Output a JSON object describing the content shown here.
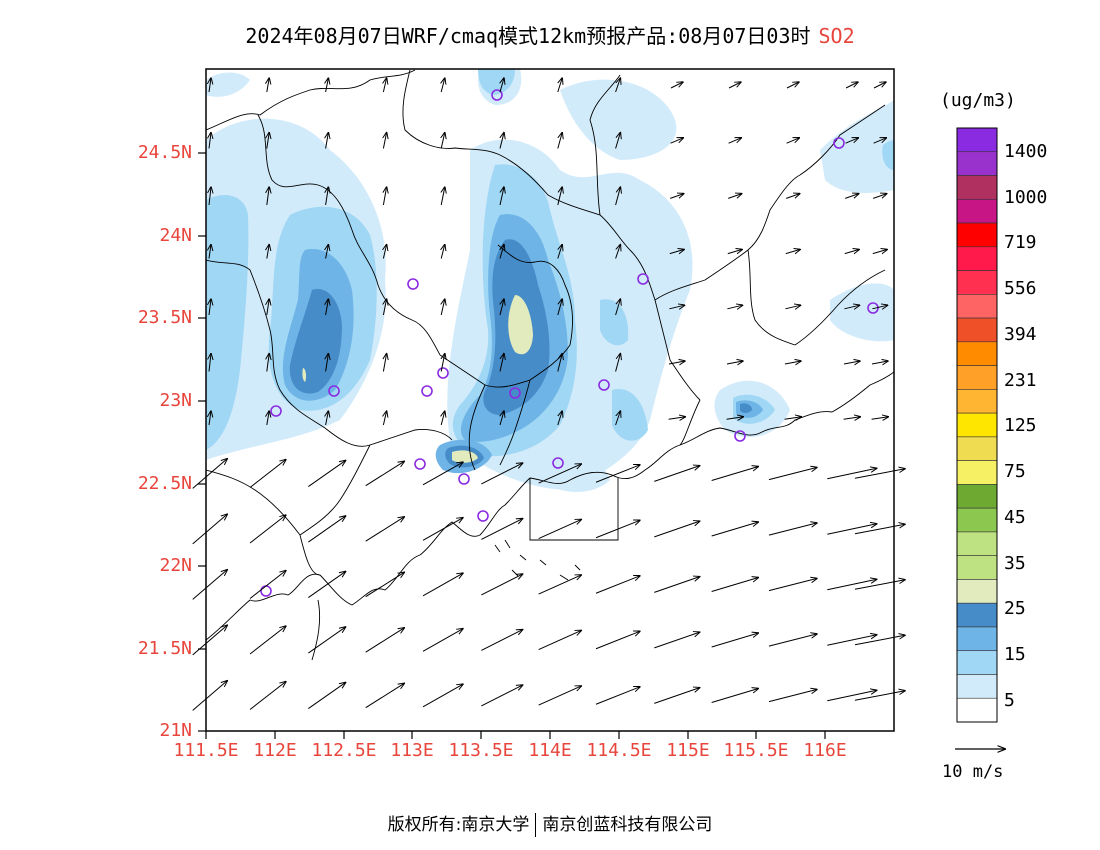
{
  "title": {
    "main": "2024年08月07日WRF/cmaq模式12km预报产品:08月07日03时",
    "pollutant": "SO2"
  },
  "axes": {
    "lat_labels": [
      "24.5N",
      "24N",
      "23.5N",
      "23N",
      "22.5N",
      "22N",
      "21.5N",
      "21N"
    ],
    "lon_labels": [
      "111.5E",
      "112E",
      "112.5E",
      "113E",
      "113.5E",
      "114E",
      "114.5E",
      "115E",
      "115.5E",
      "116E"
    ],
    "lat_range": [
      21.0,
      25.0
    ],
    "lon_range": [
      111.5,
      116.5
    ]
  },
  "colorbar": {
    "unit": "(ug/m3)",
    "labels": [
      "1400",
      "1000",
      "719",
      "556",
      "394",
      "231",
      "125",
      "75",
      "45",
      "35",
      "25",
      "15",
      "5"
    ],
    "colors": [
      "#8a2be2",
      "#9932cc",
      "#b03060",
      "#c71585",
      "#ff0000",
      "#ff1a4b",
      "#ff3050",
      "#ff6464",
      "#f05028",
      "#ff8c00",
      "#ffa028",
      "#ffb432",
      "#ffe600",
      "#f0dc50",
      "#f5f064",
      "#6eaa32",
      "#8cc850",
      "#bee182",
      "#bee182",
      "#e1ebbe",
      "#468cc8",
      "#6eb4e6",
      "#a0d7f5",
      "#d2ebfa",
      "#ffffff"
    ]
  },
  "wind": {
    "reference_label": "10 m/s"
  },
  "footer": {
    "left": "版权所有:南京大学",
    "right": "南京创蓝科技有限公司"
  },
  "colors": {
    "axis_label": "#e8453c",
    "shade_1": "#d2ebfa",
    "shade_2": "#a0d7f5",
    "shade_3": "#6eb4e6",
    "shade_4": "#468cc8",
    "shade_5": "#e1ebbe",
    "station_marker": "#8a2be2"
  }
}
